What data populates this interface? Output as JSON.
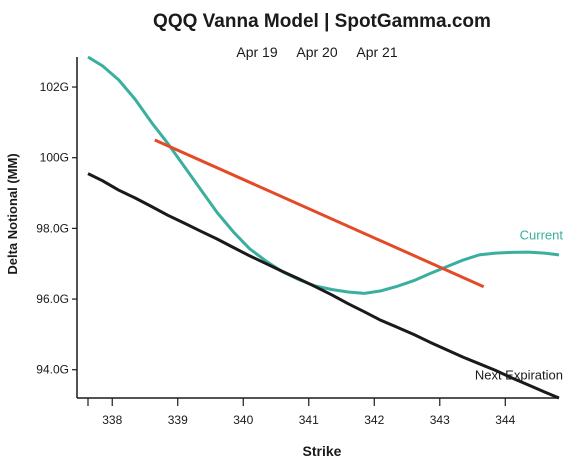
{
  "chart_data": {
    "type": "line",
    "title": "QQQ Vanna Model | SpotGamma.com",
    "subtitle_dates": [
      "Apr 19",
      "Apr 20",
      "Apr 21"
    ],
    "xlabel": "Strike",
    "ylabel": "Delta Notional (MM)",
    "xlim": [
      337.63,
      344.82
    ],
    "ylim": [
      93.2,
      102.85
    ],
    "x_ticks": [
      338,
      339,
      340,
      341,
      342,
      343,
      344
    ],
    "y_ticks": [
      94,
      96,
      98,
      100,
      102
    ],
    "y_tick_labels": [
      "94.0G",
      "96.0G",
      "98.0G",
      "100G",
      "102G"
    ],
    "grid": false,
    "series": [
      {
        "name": "Current",
        "color": "#3aaf9f",
        "x": [
          337.63,
          337.85,
          338.1,
          338.35,
          338.6,
          338.85,
          339.1,
          339.35,
          339.6,
          339.85,
          340.1,
          340.35,
          340.6,
          340.85,
          341.1,
          341.35,
          341.6,
          341.85,
          342.1,
          342.35,
          342.6,
          342.85,
          343.1,
          343.35,
          343.6,
          343.85,
          344.1,
          344.35,
          344.6,
          344.82
        ],
        "values": [
          102.85,
          102.6,
          102.2,
          101.65,
          101.0,
          100.4,
          99.75,
          99.1,
          98.45,
          97.9,
          97.42,
          97.07,
          96.77,
          96.55,
          96.37,
          96.27,
          96.2,
          96.16,
          96.23,
          96.36,
          96.52,
          96.72,
          96.91,
          97.1,
          97.25,
          97.3,
          97.32,
          97.33,
          97.3,
          97.25
        ]
      },
      {
        "name": "Next Expiration",
        "color": "#1a1a1a",
        "x": [
          337.63,
          337.85,
          338.1,
          338.35,
          338.6,
          338.85,
          339.1,
          339.35,
          339.6,
          339.85,
          340.1,
          340.35,
          340.6,
          340.85,
          341.1,
          341.35,
          341.6,
          341.85,
          342.1,
          342.35,
          342.6,
          342.85,
          343.1,
          343.35,
          343.6,
          343.85,
          344.1,
          344.35,
          344.6,
          344.82
        ],
        "values": [
          99.55,
          99.35,
          99.08,
          98.86,
          98.62,
          98.37,
          98.15,
          97.92,
          97.7,
          97.46,
          97.22,
          97.0,
          96.78,
          96.57,
          96.35,
          96.12,
          95.87,
          95.64,
          95.4,
          95.2,
          95.0,
          94.78,
          94.57,
          94.36,
          94.17,
          93.98,
          93.77,
          93.57,
          93.37,
          93.2
        ]
      },
      {
        "name": "",
        "color": "#e34a27",
        "x": [
          338.65,
          343.67
        ],
        "values": [
          100.5,
          96.35
        ]
      }
    ],
    "series_labels": [
      {
        "text": "Current",
        "series": 0
      },
      {
        "text": "Next Expiration",
        "series": 1
      }
    ]
  }
}
